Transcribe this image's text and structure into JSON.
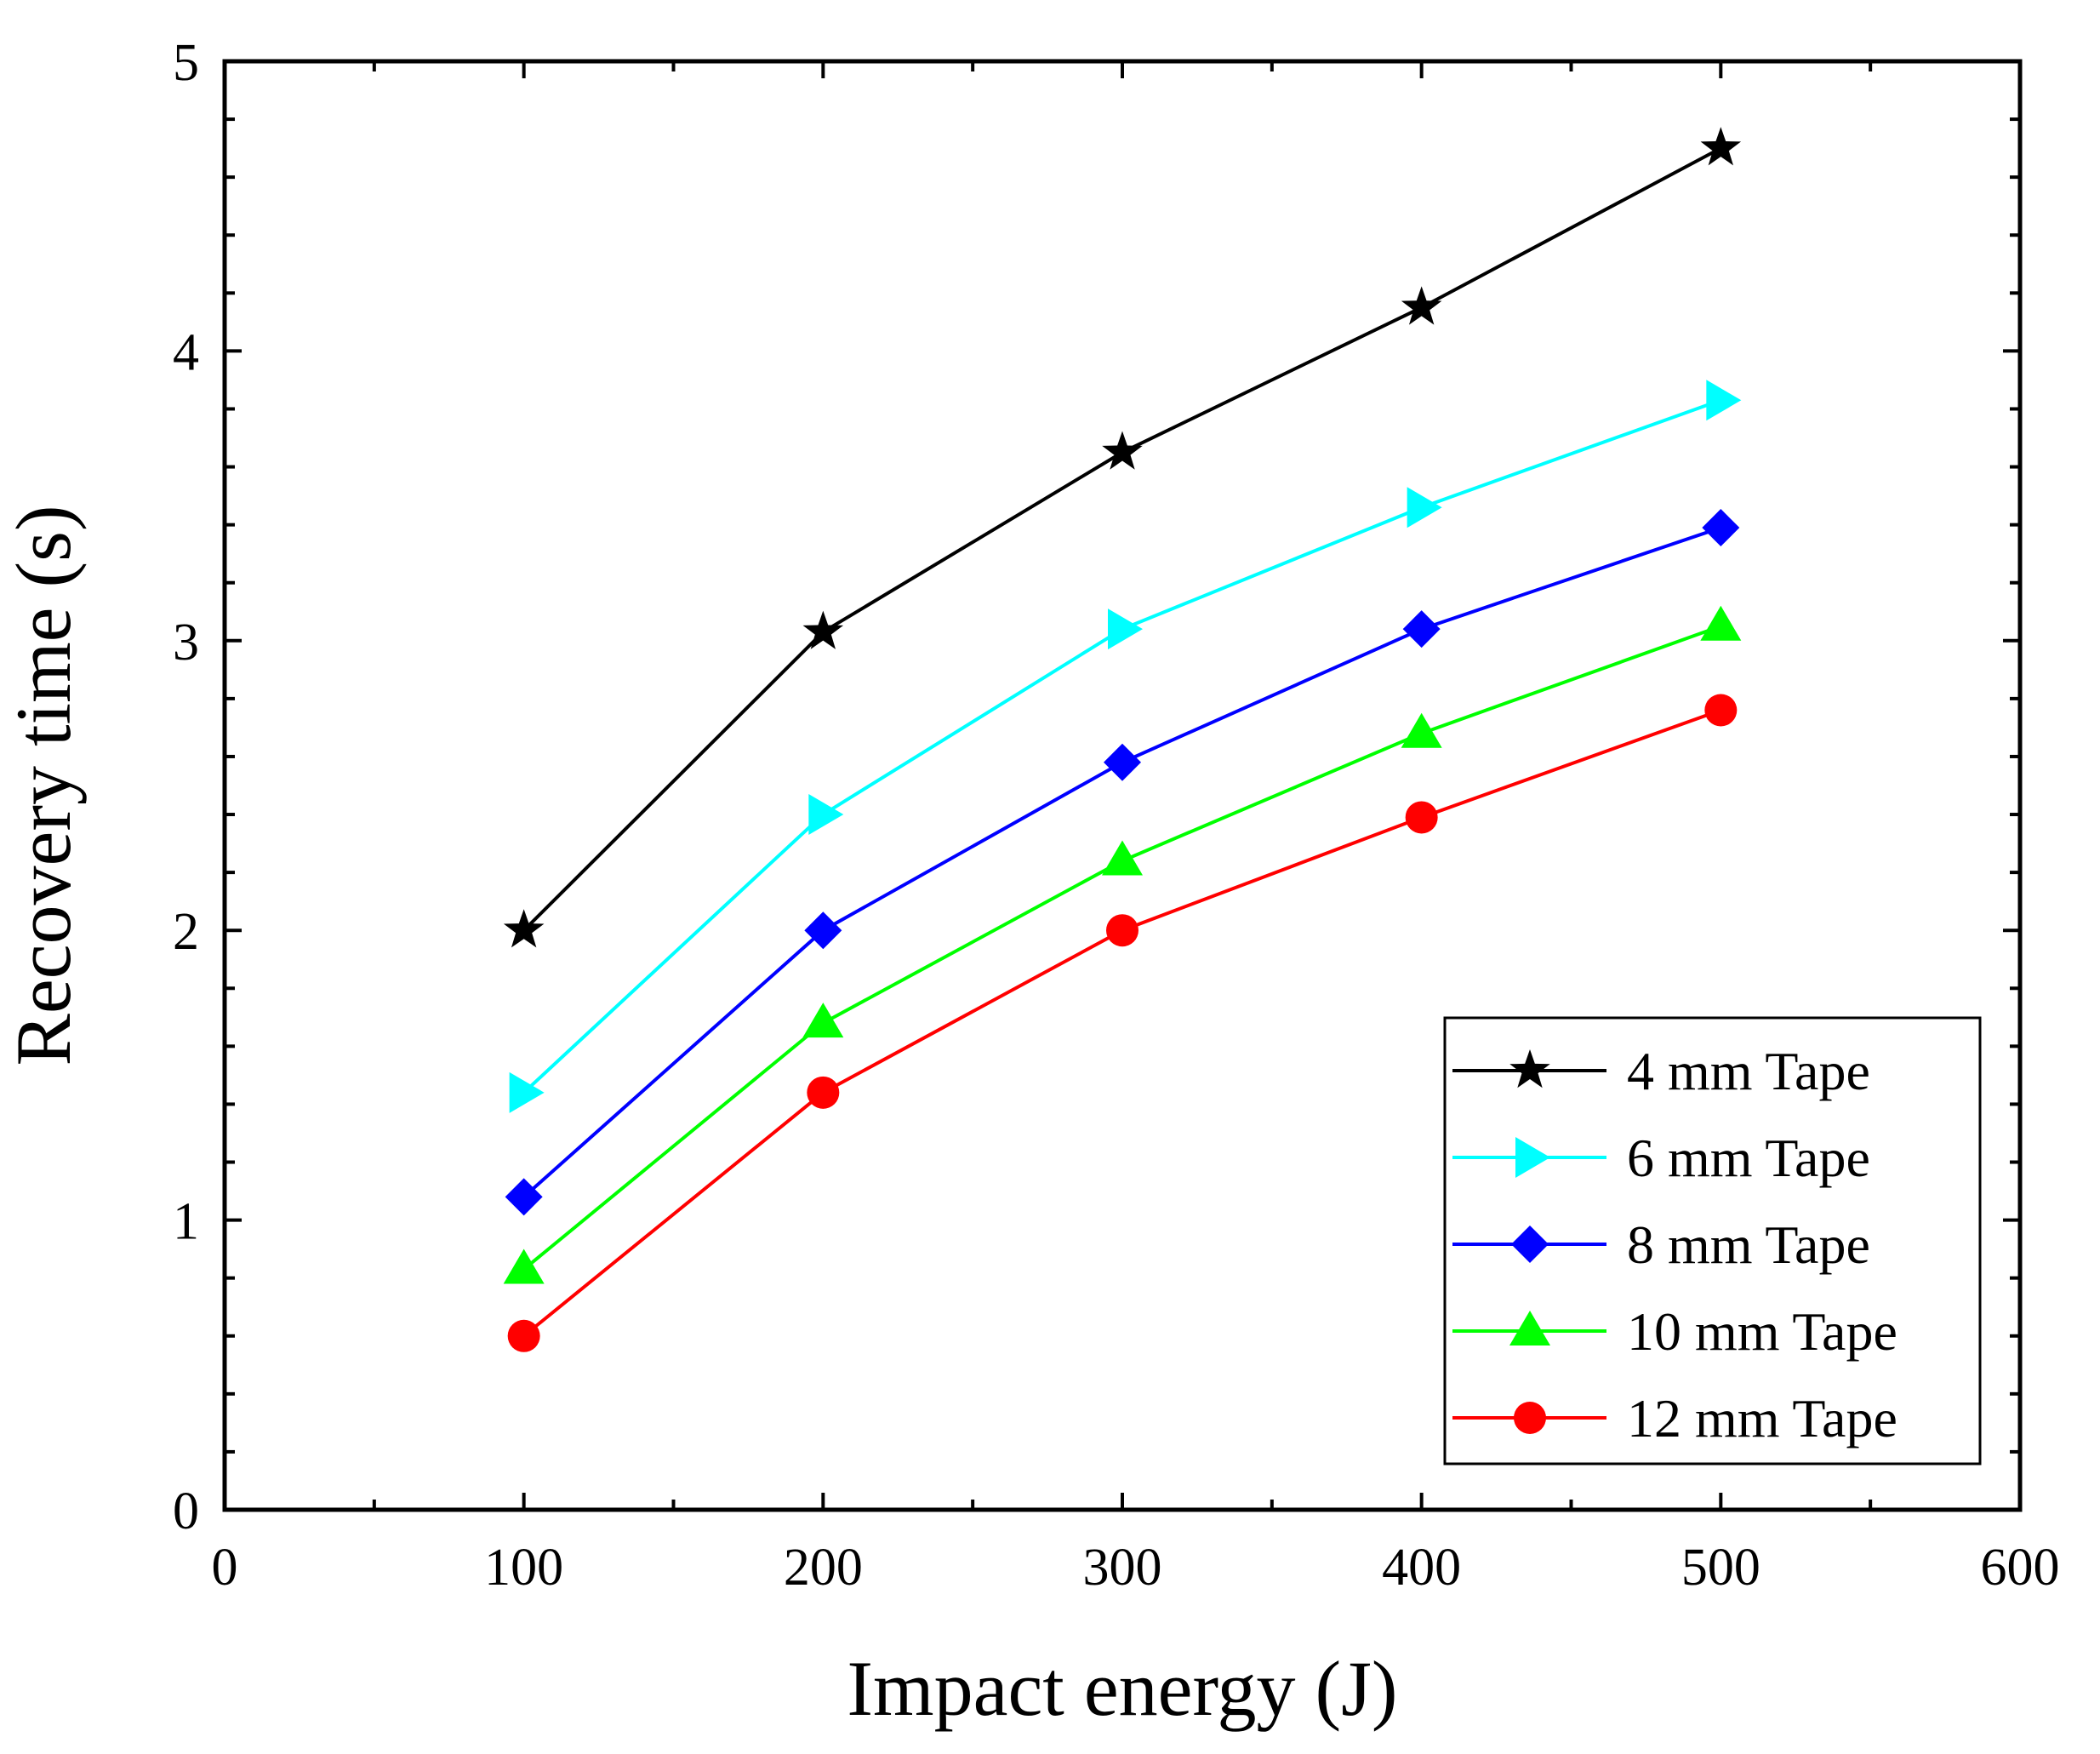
{
  "chart_data": {
    "type": "line",
    "title": "",
    "xlabel": "Impact energy (J)",
    "ylabel": "Recovery time (s)",
    "xlim": [
      0,
      600
    ],
    "ylim": [
      0,
      5
    ],
    "x_ticks": [
      0,
      100,
      200,
      300,
      400,
      500,
      600
    ],
    "y_ticks": [
      0,
      1,
      2,
      3,
      4,
      5
    ],
    "x_minor_step": 50,
    "y_minor_step": 0.2,
    "grid": false,
    "legend_position": "bottom-right",
    "x": [
      100,
      200,
      300,
      400,
      500
    ],
    "series": [
      {
        "name": "4 mm Tape",
        "color": "#000000",
        "marker": "star",
        "values": [
          2.0,
          3.03,
          3.65,
          4.15,
          4.7
        ]
      },
      {
        "name": "6 mm Tape",
        "color": "#00ffff",
        "marker": "triangle-right",
        "values": [
          1.44,
          2.4,
          3.04,
          3.46,
          3.83
        ]
      },
      {
        "name": "8 mm Tape",
        "color": "#0000ff",
        "marker": "diamond",
        "values": [
          1.08,
          2.0,
          2.58,
          3.04,
          3.39
        ]
      },
      {
        "name": "10 mm Tape",
        "color": "#00ff00",
        "marker": "triangle-up",
        "values": [
          0.83,
          1.68,
          2.24,
          2.68,
          3.05
        ]
      },
      {
        "name": "12 mm Tape",
        "color": "#ff0000",
        "marker": "circle",
        "values": [
          0.6,
          1.44,
          2.0,
          2.39,
          2.76
        ]
      }
    ]
  }
}
